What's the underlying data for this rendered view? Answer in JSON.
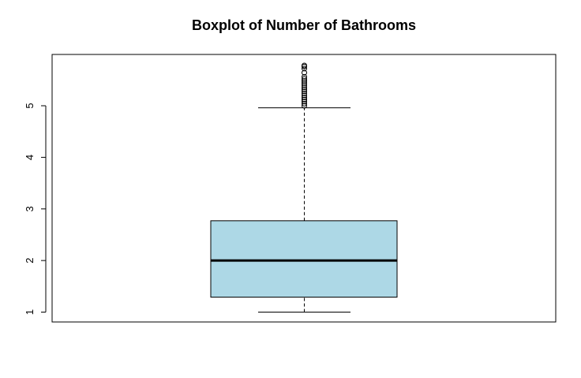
{
  "chart_data": {
    "type": "boxplot",
    "title": "Boxplot of Number of Bathrooms",
    "xlabel": "",
    "ylabel": "",
    "ylim": [
      0.8,
      5.85
    ],
    "yticks": [
      1,
      2,
      3,
      4,
      5
    ],
    "ytick_labels": [
      "1",
      "2",
      "3",
      "4",
      "5"
    ],
    "grid": false,
    "box": {
      "whisker_low": 1.0,
      "q1": 1.29,
      "median": 2.0,
      "q3": 2.77,
      "whisker_high": 4.96
    },
    "outliers": [
      5.0,
      5.04,
      5.08,
      5.12,
      5.16,
      5.2,
      5.24,
      5.28,
      5.32,
      5.36,
      5.4,
      5.44,
      5.48,
      5.52,
      5.56,
      5.64,
      5.72,
      5.76,
      5.78
    ],
    "colors": {
      "box_fill": "#add8e6",
      "line": "#000000"
    }
  }
}
